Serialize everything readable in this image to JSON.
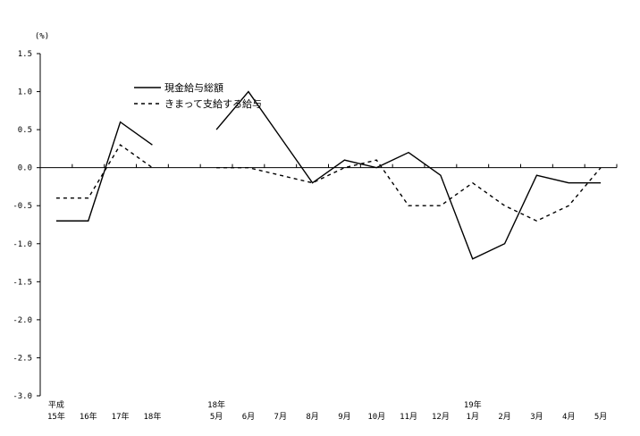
{
  "chart_data": {
    "type": "line",
    "unit": "(%)",
    "ylim": [
      -3.0,
      1.5
    ],
    "y_ticks": [
      "1.5",
      "1.0",
      "0.5",
      "0.0",
      "-0.5",
      "-1.0",
      "-1.5",
      "-2.0",
      "-2.5",
      "-3.0"
    ],
    "categories": [
      {
        "top": "平成",
        "bottom": "15年"
      },
      {
        "top": "",
        "bottom": "16年"
      },
      {
        "top": "",
        "bottom": "17年"
      },
      {
        "top": "",
        "bottom": "18年"
      },
      {
        "top": "",
        "bottom": ""
      },
      {
        "top": "18年",
        "bottom": "5月"
      },
      {
        "top": "",
        "bottom": "6月"
      },
      {
        "top": "",
        "bottom": "7月"
      },
      {
        "top": "",
        "bottom": "8月"
      },
      {
        "top": "",
        "bottom": "9月"
      },
      {
        "top": "",
        "bottom": "10月"
      },
      {
        "top": "",
        "bottom": "11月"
      },
      {
        "top": "",
        "bottom": "12月"
      },
      {
        "top": "19年",
        "bottom": "1月"
      },
      {
        "top": "",
        "bottom": "2月"
      },
      {
        "top": "",
        "bottom": "3月"
      },
      {
        "top": "",
        "bottom": "4月"
      },
      {
        "top": "",
        "bottom": "5月"
      }
    ],
    "series": [
      {
        "name": "現金給与総額",
        "style": "solid",
        "color": "#000000",
        "values": [
          -0.7,
          -0.7,
          0.6,
          0.3,
          null,
          0.5,
          1.0,
          0.4,
          -0.2,
          0.1,
          0.0,
          0.2,
          -0.1,
          -1.2,
          -1.0,
          -0.1,
          -0.2,
          -0.2
        ]
      },
      {
        "name": "きまって支給する給与",
        "style": "dashed",
        "color": "#000000",
        "values": [
          -0.4,
          -0.4,
          0.3,
          0.0,
          null,
          0.0,
          0.0,
          -0.1,
          -0.2,
          0.0,
          0.1,
          -0.5,
          -0.5,
          -0.2,
          -0.5,
          -0.7,
          -0.5,
          0.0
        ]
      }
    ],
    "grid": false,
    "legend": "upper-left"
  }
}
